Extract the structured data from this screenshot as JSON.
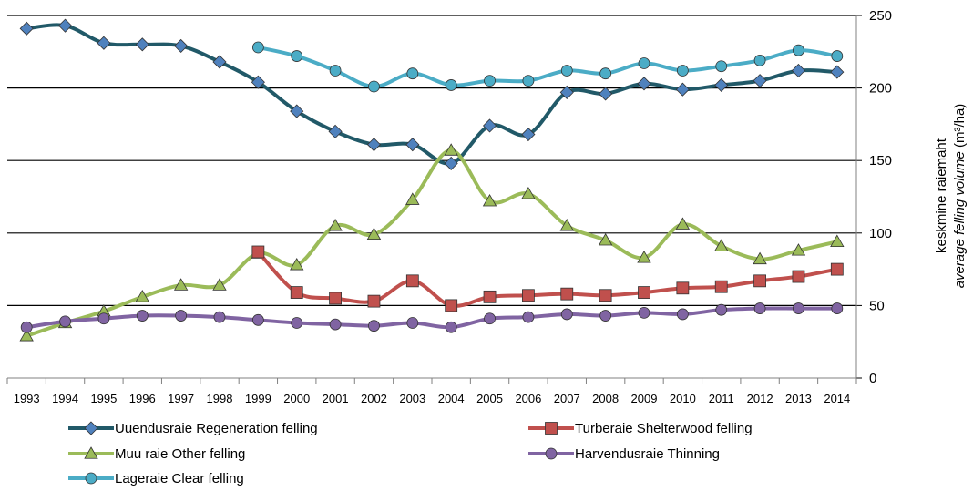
{
  "chart_data": {
    "type": "line",
    "title": "",
    "x": [
      "1993",
      "1994",
      "1995",
      "1996",
      "1997",
      "1998",
      "1999",
      "2000",
      "2001",
      "2002",
      "2003",
      "2004",
      "2005",
      "2006",
      "2007",
      "2008",
      "2009",
      "2010",
      "2011",
      "2012",
      "2013",
      "2014"
    ],
    "ylabel_line1": "keskmine raiemaht",
    "ylabel_line2_italic": "average felling volume",
    "ylabel_unit": "(m³/ha)",
    "ylim": [
      0,
      250
    ],
    "yticks": [
      0,
      50,
      100,
      150,
      200,
      250
    ],
    "y_axis_position": "right",
    "grid": "horizontal",
    "legend_position": "bottom",
    "series": [
      {
        "name": "Uuendusraie Regeneration felling",
        "color": "#215968",
        "marker": "diamond",
        "marker_color": "#4F81BD",
        "values": [
          241,
          243,
          231,
          230,
          229,
          218,
          204,
          184,
          170,
          161,
          161,
          148,
          174,
          168,
          197,
          196,
          203,
          199,
          202,
          205,
          212,
          211
        ]
      },
      {
        "name": "Turberaie Shelterwood felling",
        "color": "#C0504D",
        "marker": "square",
        "marker_color": "#C0504D",
        "values": [
          null,
          null,
          null,
          null,
          null,
          null,
          87,
          59,
          55,
          53,
          67,
          50,
          56,
          57,
          58,
          57,
          59,
          62,
          63,
          67,
          70,
          75
        ]
      },
      {
        "name": "Muu raie Other felling",
        "color": "#9BBB59",
        "marker": "triangle",
        "marker_color": "#9BBB59",
        "values": [
          29,
          38,
          46,
          56,
          64,
          64,
          86,
          78,
          105,
          99,
          123,
          157,
          122,
          127,
          105,
          95,
          83,
          106,
          91,
          82,
          88,
          94
        ]
      },
      {
        "name": "Harvendusraie Thinning",
        "color": "#8064A2",
        "marker": "circle",
        "marker_color": "#8064A2",
        "values": [
          35,
          39,
          41,
          43,
          43,
          42,
          40,
          38,
          37,
          36,
          38,
          35,
          41,
          42,
          44,
          43,
          45,
          44,
          47,
          48,
          48,
          48
        ]
      },
      {
        "name": "Lageraie Clear felling",
        "color": "#4BACC6",
        "marker": "circle",
        "marker_color": "#4BACC6",
        "values": [
          null,
          null,
          null,
          null,
          null,
          null,
          228,
          222,
          212,
          201,
          210,
          202,
          205,
          205,
          212,
          210,
          217,
          212,
          215,
          219,
          226,
          222
        ]
      }
    ]
  }
}
